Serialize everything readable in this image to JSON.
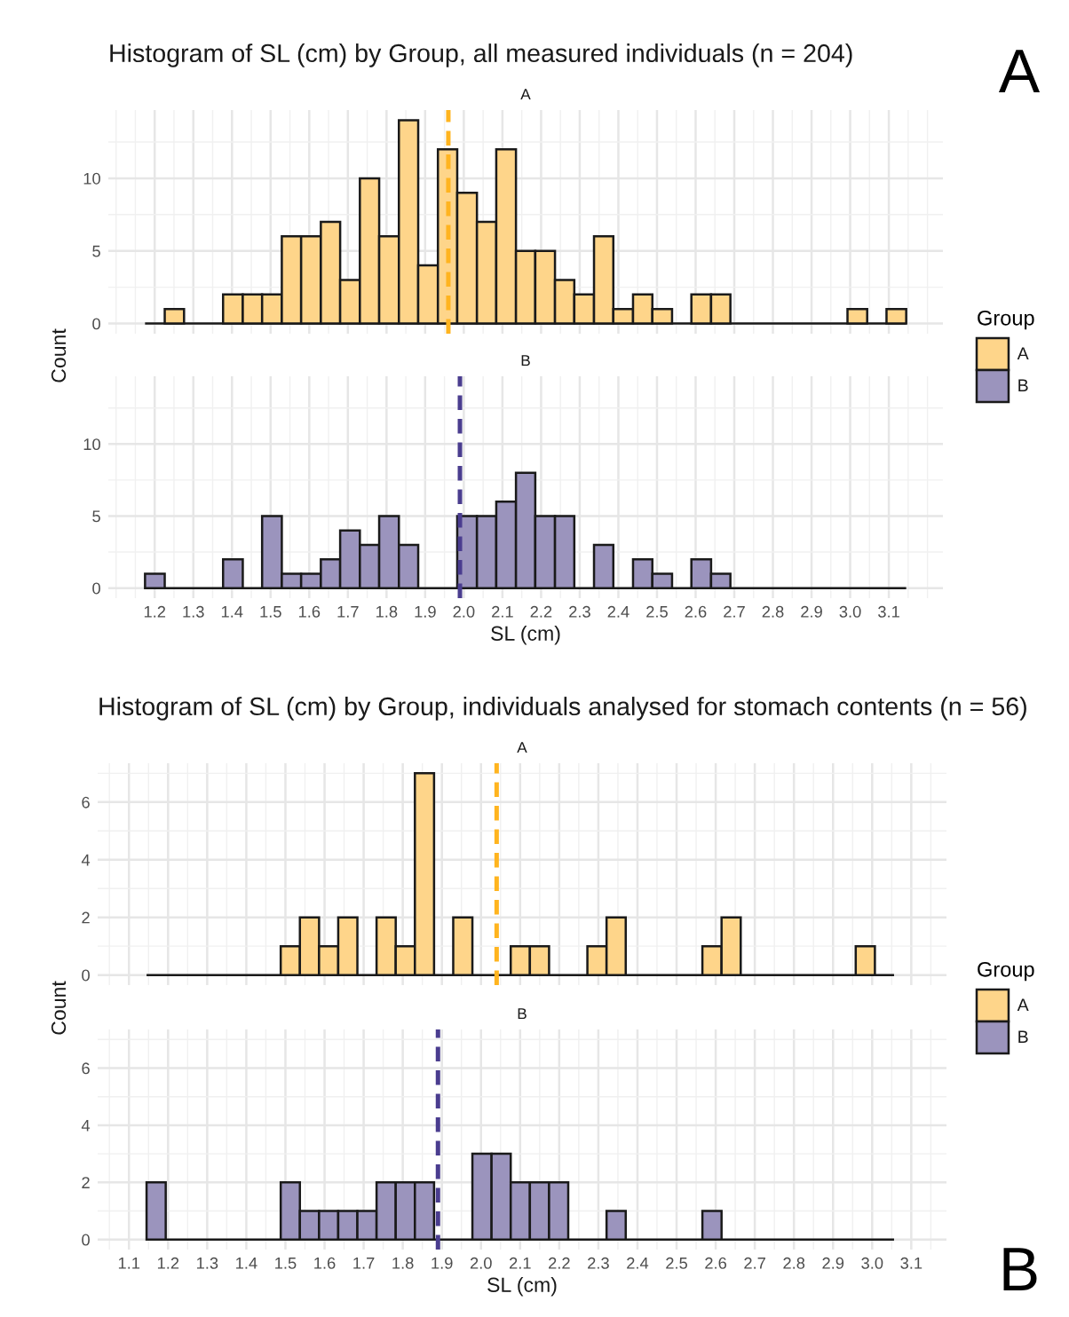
{
  "chart_data": [
    {
      "type": "histogram",
      "title": "Histogram of SL (cm) by Group, all measured individuals (n = 204)",
      "subtitle": "A",
      "ylabel": "Count",
      "legend": "right",
      "legend_title": "Group",
      "tick_labels": "y",
      "grid": true,
      "annotations": [
        "A"
      ],
      "bins": [
        1.175,
        1.226,
        1.276,
        1.327,
        1.377,
        1.428,
        1.478,
        1.529,
        1.579,
        1.63,
        1.68,
        1.731,
        1.781,
        1.832,
        1.882,
        1.933,
        1.983,
        2.034,
        2.084,
        2.135,
        2.185,
        2.236,
        2.286,
        2.337,
        2.387,
        2.438,
        2.488,
        2.539,
        2.589,
        2.64,
        2.69,
        2.741,
        2.791,
        2.842,
        2.892,
        2.943,
        2.993,
        3.044,
        3.094,
        3.145
      ],
      "series": [
        {
          "name": "A",
          "color": "#fed58a",
          "values": [
            0,
            1,
            0,
            0,
            2,
            2,
            2,
            6,
            6,
            7,
            3,
            10,
            6,
            14,
            4,
            12,
            9,
            7,
            12,
            5,
            5,
            3,
            2,
            6,
            1,
            2,
            1,
            0,
            2,
            2,
            0,
            0,
            0,
            0,
            0,
            0,
            1,
            0,
            1
          ]
        }
      ],
      "ref_lines": [
        {
          "axis": "x",
          "value": 1.96,
          "color": "#ffb41f",
          "line_style": "dashed"
        }
      ],
      "xlim": [
        1.08,
        3.24
      ],
      "xticks": [
        1.2,
        1.3,
        1.4,
        1.5,
        1.6,
        1.7,
        1.8,
        1.9,
        2.0,
        2.1,
        2.2,
        2.3,
        2.4,
        2.5,
        2.6,
        2.7,
        2.8,
        2.9,
        3.0,
        3.1,
        {
          "value": 1.1,
          "label": null
        },
        {
          "value": 1.15,
          "label": null
        },
        {
          "value": 1.25,
          "label": null
        },
        {
          "value": 1.35,
          "label": null
        },
        {
          "value": 1.45,
          "label": null
        },
        {
          "value": 1.55,
          "label": null
        },
        {
          "value": 1.65,
          "label": null
        },
        {
          "value": 1.75,
          "label": null
        },
        {
          "value": 1.85,
          "label": null
        },
        {
          "value": 1.95,
          "label": null
        },
        {
          "value": 2.05,
          "label": null
        },
        {
          "value": 2.15,
          "label": null
        },
        {
          "value": 2.25,
          "label": null
        },
        {
          "value": 2.35,
          "label": null
        },
        {
          "value": 2.45,
          "label": null
        },
        {
          "value": 2.55,
          "label": null
        },
        {
          "value": 2.65,
          "label": null
        },
        {
          "value": 2.75,
          "label": null
        },
        {
          "value": 2.85,
          "label": null
        },
        {
          "value": 2.95,
          "label": null
        },
        {
          "value": 3.05,
          "label": null
        },
        {
          "value": 3.15,
          "label": null
        },
        {
          "value": 3.2,
          "label": null
        }
      ],
      "ylim": [
        -0.7,
        14.7
      ],
      "yticks": [
        0,
        5,
        10,
        {
          "value": 2.5,
          "label": null
        },
        {
          "value": 7.5,
          "label": null
        },
        {
          "value": 12.5,
          "label": null
        }
      ]
    },
    {
      "type": "histogram",
      "subtitle": "B",
      "xlabel": "SL (cm)",
      "legend": "right",
      "grid": true,
      "bins": [
        1.175,
        1.226,
        1.276,
        1.327,
        1.377,
        1.428,
        1.478,
        1.529,
        1.579,
        1.63,
        1.68,
        1.731,
        1.781,
        1.832,
        1.882,
        1.933,
        1.983,
        2.034,
        2.084,
        2.135,
        2.185,
        2.236,
        2.286,
        2.337,
        2.387,
        2.438,
        2.488,
        2.539,
        2.589,
        2.64,
        2.69,
        2.741,
        2.791,
        2.842,
        2.892,
        2.943,
        2.993,
        3.044,
        3.094,
        3.145
      ],
      "series": [
        {
          "name": "B",
          "color": "#9b94bd",
          "values": [
            1,
            0,
            0,
            0,
            2,
            0,
            5,
            1,
            1,
            2,
            4,
            3,
            5,
            3,
            0,
            0,
            5,
            5,
            6,
            8,
            5,
            5,
            0,
            3,
            0,
            2,
            1,
            0,
            2,
            1,
            0,
            0,
            0,
            0,
            0,
            0,
            0,
            0,
            0
          ]
        }
      ],
      "ref_lines": [
        {
          "axis": "x",
          "value": 1.99,
          "color": "#4a3d8f",
          "line_style": "dashed"
        }
      ],
      "xlim": [
        1.08,
        3.24
      ],
      "xticks": [
        1.2,
        1.3,
        1.4,
        1.5,
        1.6,
        1.7,
        1.8,
        1.9,
        {
          "value": 2.0,
          "label": "2.0"
        },
        2.1,
        2.2,
        2.3,
        2.4,
        2.5,
        2.6,
        2.7,
        2.8,
        2.9,
        {
          "value": 3.0,
          "label": "3.0"
        },
        3.1,
        {
          "value": 1.1,
          "label": null
        },
        {
          "value": 1.15,
          "label": null
        },
        {
          "value": 1.25,
          "label": null
        },
        {
          "value": 1.35,
          "label": null
        },
        {
          "value": 1.45,
          "label": null
        },
        {
          "value": 1.55,
          "label": null
        },
        {
          "value": 1.65,
          "label": null
        },
        {
          "value": 1.75,
          "label": null
        },
        {
          "value": 1.85,
          "label": null
        },
        {
          "value": 1.95,
          "label": null
        },
        {
          "value": 2.05,
          "label": null
        },
        {
          "value": 2.15,
          "label": null
        },
        {
          "value": 2.25,
          "label": null
        },
        {
          "value": 2.35,
          "label": null
        },
        {
          "value": 2.45,
          "label": null
        },
        {
          "value": 2.55,
          "label": null
        },
        {
          "value": 2.65,
          "label": null
        },
        {
          "value": 2.75,
          "label": null
        },
        {
          "value": 2.85,
          "label": null
        },
        {
          "value": 2.95,
          "label": null
        },
        {
          "value": 3.05,
          "label": null
        },
        {
          "value": 3.15,
          "label": null
        },
        {
          "value": 3.2,
          "label": null
        }
      ],
      "ylim": [
        -0.7,
        14.7
      ],
      "yticks": [
        0,
        5,
        10,
        {
          "value": 2.5,
          "label": null
        },
        {
          "value": 7.5,
          "label": null
        },
        {
          "value": 12.5,
          "label": null
        }
      ]
    },
    {
      "type": "histogram",
      "title": "Histogram of SL (cm) by Group, individuals analysed for stomach contents (n = 56)",
      "subtitle": "A",
      "ylabel": "Count",
      "legend": "right",
      "legend_title": "Group",
      "tick_labels": "y",
      "grid": true,
      "bins": [
        1.145,
        1.194,
        1.243,
        1.292,
        1.341,
        1.39,
        1.439,
        1.488,
        1.537,
        1.586,
        1.635,
        1.684,
        1.733,
        1.782,
        1.831,
        1.88,
        1.929,
        1.978,
        2.027,
        2.076,
        2.125,
        2.174,
        2.223,
        2.272,
        2.321,
        2.37,
        2.419,
        2.468,
        2.517,
        2.566,
        2.615,
        2.664,
        2.713,
        2.762,
        2.811,
        2.86,
        2.909,
        2.958,
        3.007,
        3.056
      ],
      "series": [
        {
          "name": "A",
          "color": "#fed58a",
          "values": [
            0,
            0,
            0,
            0,
            0,
            0,
            0,
            1,
            2,
            1,
            2,
            0,
            2,
            1,
            7,
            0,
            2,
            0,
            0,
            1,
            1,
            0,
            0,
            1,
            2,
            0,
            0,
            0,
            0,
            1,
            2,
            0,
            0,
            0,
            0,
            0,
            0,
            1,
            0
          ]
        }
      ],
      "ref_lines": [
        {
          "axis": "x",
          "value": 2.04,
          "color": "#ffb41f",
          "line_style": "dashed"
        }
      ],
      "xlim": [
        1.02,
        3.19
      ],
      "xticks": [
        1.1,
        1.2,
        1.3,
        1.4,
        1.5,
        1.6,
        1.7,
        1.8,
        1.9,
        2.0,
        2.1,
        2.2,
        2.3,
        2.4,
        2.5,
        2.6,
        2.7,
        2.8,
        2.9,
        3.0,
        3.1,
        {
          "value": 1.05,
          "label": null
        },
        {
          "value": 1.15,
          "label": null
        },
        {
          "value": 1.25,
          "label": null
        },
        {
          "value": 1.35,
          "label": null
        },
        {
          "value": 1.45,
          "label": null
        },
        {
          "value": 1.55,
          "label": null
        },
        {
          "value": 1.65,
          "label": null
        },
        {
          "value": 1.75,
          "label": null
        },
        {
          "value": 1.85,
          "label": null
        },
        {
          "value": 1.95,
          "label": null
        },
        {
          "value": 2.05,
          "label": null
        },
        {
          "value": 2.15,
          "label": null
        },
        {
          "value": 2.25,
          "label": null
        },
        {
          "value": 2.35,
          "label": null
        },
        {
          "value": 2.45,
          "label": null
        },
        {
          "value": 2.55,
          "label": null
        },
        {
          "value": 2.65,
          "label": null
        },
        {
          "value": 2.75,
          "label": null
        },
        {
          "value": 2.85,
          "label": null
        },
        {
          "value": 2.95,
          "label": null
        },
        {
          "value": 3.05,
          "label": null
        },
        {
          "value": 3.15,
          "label": null
        }
      ],
      "ylim": [
        -0.35,
        7.35
      ],
      "yticks": [
        0,
        2,
        4,
        6,
        {
          "value": 1,
          "label": null
        },
        {
          "value": 3,
          "label": null
        },
        {
          "value": 5,
          "label": null
        },
        {
          "value": 7,
          "label": null
        }
      ]
    },
    {
      "type": "histogram",
      "subtitle": "B",
      "xlabel": "SL (cm)",
      "legend": "right",
      "grid": true,
      "annotations": [
        "B"
      ],
      "bins": [
        1.145,
        1.194,
        1.243,
        1.292,
        1.341,
        1.39,
        1.439,
        1.488,
        1.537,
        1.586,
        1.635,
        1.684,
        1.733,
        1.782,
        1.831,
        1.88,
        1.929,
        1.978,
        2.027,
        2.076,
        2.125,
        2.174,
        2.223,
        2.272,
        2.321,
        2.37,
        2.419,
        2.468,
        2.517,
        2.566,
        2.615,
        2.664,
        2.713,
        2.762,
        2.811,
        2.86,
        2.909,
        2.958,
        3.007,
        3.056
      ],
      "series": [
        {
          "name": "B",
          "color": "#9b94bd",
          "values": [
            2,
            0,
            0,
            0,
            0,
            0,
            0,
            2,
            1,
            1,
            1,
            1,
            2,
            2,
            2,
            0,
            0,
            3,
            3,
            2,
            2,
            2,
            0,
            0,
            1,
            0,
            0,
            0,
            0,
            1,
            0,
            0,
            0,
            0,
            0,
            0,
            0,
            0,
            0
          ]
        }
      ],
      "ref_lines": [
        {
          "axis": "x",
          "value": 1.89,
          "color": "#4a3d8f",
          "line_style": "dashed"
        }
      ],
      "xlim": [
        1.02,
        3.19
      ],
      "xticks": [
        1.1,
        1.2,
        1.3,
        1.4,
        1.5,
        1.6,
        1.7,
        1.8,
        1.9,
        {
          "value": 2.0,
          "label": "2.0"
        },
        2.1,
        2.2,
        2.3,
        2.4,
        2.5,
        2.6,
        2.7,
        2.8,
        2.9,
        {
          "value": 3.0,
          "label": "3.0"
        },
        3.1,
        {
          "value": 1.05,
          "label": null
        },
        {
          "value": 1.15,
          "label": null
        },
        {
          "value": 1.25,
          "label": null
        },
        {
          "value": 1.35,
          "label": null
        },
        {
          "value": 1.45,
          "label": null
        },
        {
          "value": 1.55,
          "label": null
        },
        {
          "value": 1.65,
          "label": null
        },
        {
          "value": 1.75,
          "label": null
        },
        {
          "value": 1.85,
          "label": null
        },
        {
          "value": 1.95,
          "label": null
        },
        {
          "value": 2.05,
          "label": null
        },
        {
          "value": 2.15,
          "label": null
        },
        {
          "value": 2.25,
          "label": null
        },
        {
          "value": 2.35,
          "label": null
        },
        {
          "value": 2.45,
          "label": null
        },
        {
          "value": 2.55,
          "label": null
        },
        {
          "value": 2.65,
          "label": null
        },
        {
          "value": 2.75,
          "label": null
        },
        {
          "value": 2.85,
          "label": null
        },
        {
          "value": 2.95,
          "label": null
        },
        {
          "value": 3.05,
          "label": null
        },
        {
          "value": 3.15,
          "label": null
        }
      ],
      "ylim": [
        -0.35,
        7.35
      ],
      "yticks": [
        0,
        2,
        4,
        6,
        {
          "value": 1,
          "label": null
        },
        {
          "value": 3,
          "label": null
        },
        {
          "value": 5,
          "label": null
        },
        {
          "value": 7,
          "label": null
        }
      ]
    }
  ]
}
